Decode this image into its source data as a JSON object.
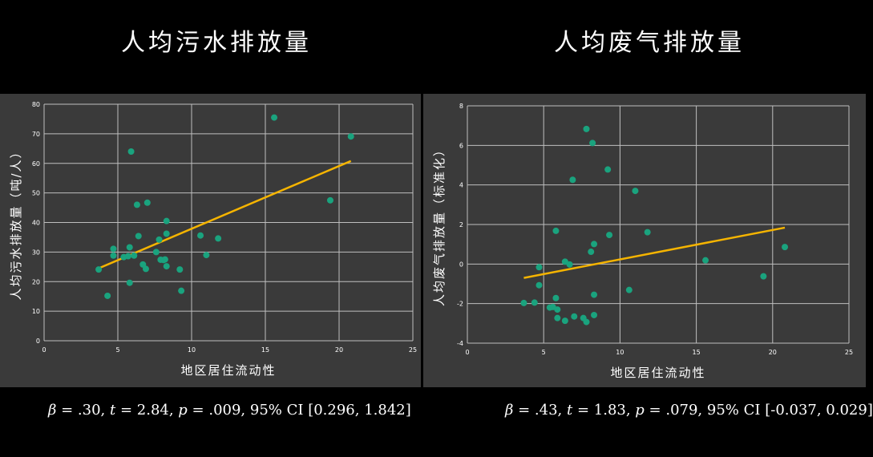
{
  "colors": {
    "background": "#000000",
    "panel": "#3a3a3a",
    "grid": "#bfbfbf",
    "point": "#1aa37e",
    "trend": "#f5b400",
    "text": "#ffffff"
  },
  "titles": {
    "left": "人均污水排放量",
    "right": "人均废气排放量"
  },
  "stats": {
    "left": {
      "beta_sym": "β",
      "beta_val": " = .30, ",
      "t_sym": "t",
      "t_val": " = 2.84, ",
      "p_sym": "p",
      "p_val": " = .009, 95%  CI [0.296, 1.842]"
    },
    "right": {
      "beta_sym": "β",
      "beta_val": " = .43, ",
      "t_sym": "t",
      "t_val": " = 1.83, ",
      "p_sym": "p",
      "p_val": " = .079, 95%  CI [-0.037, 0.029]"
    }
  },
  "chart_data": [
    {
      "type": "scatter",
      "title": "人均污水排放量",
      "xlabel": "地区居住流动性",
      "ylabel": "人均污水排放量（吨/人）",
      "xlim": [
        0,
        25
      ],
      "ylim": [
        0,
        80
      ],
      "xticks": [
        0,
        5,
        10,
        15,
        20,
        25
      ],
      "yticks": [
        0,
        10,
        20,
        30,
        40,
        50,
        60,
        70,
        80
      ],
      "grid": true,
      "points": [
        [
          3.7,
          24.1
        ],
        [
          4.3,
          15.2
        ],
        [
          4.7,
          31.1
        ],
        [
          4.7,
          28.8
        ],
        [
          5.4,
          28.3
        ],
        [
          5.7,
          28.6
        ],
        [
          5.8,
          31.6
        ],
        [
          5.8,
          19.6
        ],
        [
          5.9,
          64.0
        ],
        [
          6.1,
          28.8
        ],
        [
          6.3,
          46.0
        ],
        [
          6.4,
          35.4
        ],
        [
          6.7,
          25.8
        ],
        [
          6.9,
          24.3
        ],
        [
          7.0,
          46.7
        ],
        [
          7.6,
          30.0
        ],
        [
          7.8,
          34.2
        ],
        [
          7.9,
          27.4
        ],
        [
          8.1,
          27.3
        ],
        [
          8.2,
          27.5
        ],
        [
          8.3,
          36.2
        ],
        [
          8.3,
          40.5
        ],
        [
          8.3,
          25.2
        ],
        [
          9.2,
          24.1
        ],
        [
          9.3,
          16.9
        ],
        [
          10.6,
          35.6
        ],
        [
          11.0,
          29.0
        ],
        [
          11.8,
          34.6
        ],
        [
          15.6,
          75.5
        ],
        [
          19.4,
          47.5
        ],
        [
          20.8,
          69.1
        ]
      ],
      "trendline": [
        [
          3.7,
          24.5
        ],
        [
          20.8,
          60.8
        ]
      ]
    },
    {
      "type": "scatter",
      "title": "人均废气排放量",
      "xlabel": "地区居住流动性",
      "ylabel": "人均废气排放量（标准化）",
      "xlim": [
        0,
        25
      ],
      "ylim": [
        -4,
        8
      ],
      "xticks": [
        0,
        5,
        10,
        15,
        20,
        25
      ],
      "yticks": [
        -4,
        -2,
        0,
        2,
        4,
        6,
        8
      ],
      "grid": true,
      "points": [
        [
          3.7,
          -1.97
        ],
        [
          4.4,
          -1.95
        ],
        [
          4.7,
          -0.16
        ],
        [
          4.7,
          -1.07
        ],
        [
          5.4,
          -2.2
        ],
        [
          5.6,
          -2.17
        ],
        [
          5.8,
          -1.72
        ],
        [
          5.8,
          1.68
        ],
        [
          5.9,
          -2.73
        ],
        [
          5.9,
          -2.3
        ],
        [
          6.4,
          -2.87
        ],
        [
          6.4,
          0.12
        ],
        [
          6.7,
          -0.02
        ],
        [
          6.9,
          4.26
        ],
        [
          7.0,
          -2.65
        ],
        [
          7.6,
          -2.73
        ],
        [
          7.8,
          -2.93
        ],
        [
          7.8,
          6.83
        ],
        [
          8.1,
          0.62
        ],
        [
          8.2,
          6.12
        ],
        [
          8.3,
          -1.55
        ],
        [
          8.3,
          -2.58
        ],
        [
          8.3,
          1.01
        ],
        [
          9.2,
          4.78
        ],
        [
          9.3,
          1.47
        ],
        [
          10.6,
          -1.31
        ],
        [
          11.0,
          3.7
        ],
        [
          11.8,
          1.61
        ],
        [
          15.6,
          0.19
        ],
        [
          19.4,
          -0.62
        ],
        [
          20.8,
          0.86
        ]
      ],
      "trendline": [
        [
          3.7,
          -0.7
        ],
        [
          20.8,
          1.84
        ]
      ]
    }
  ]
}
